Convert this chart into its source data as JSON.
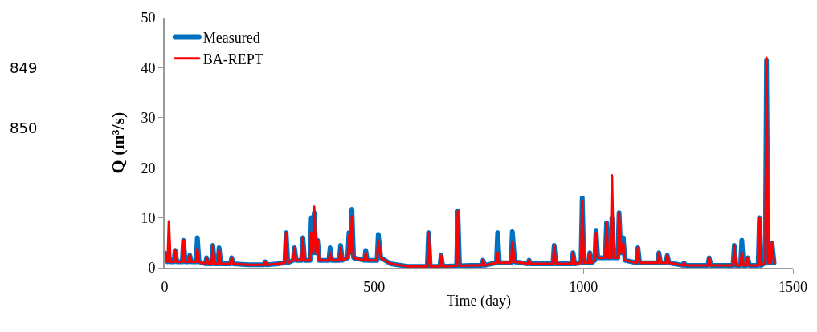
{
  "chart_data": {
    "type": "line",
    "xlabel": "Time (day)",
    "ylabel": "Q (m³/s)",
    "x": [
      0,
      7,
      10,
      14,
      22,
      25,
      29,
      42,
      45,
      49,
      57,
      60,
      64,
      75,
      78,
      82,
      97,
      100,
      104,
      112,
      115,
      119,
      127,
      130,
      134,
      157,
      160,
      164,
      200,
      237,
      240,
      244,
      270,
      287,
      290,
      294,
      307,
      310,
      314,
      327,
      330,
      334,
      347,
      350,
      354,
      357,
      361,
      365,
      369,
      392,
      395,
      399,
      417,
      420,
      424,
      437,
      440,
      444,
      447,
      451,
      477,
      480,
      484,
      507,
      510,
      516,
      540,
      580,
      627,
      630,
      634,
      657,
      660,
      664,
      697,
      700,
      704,
      730,
      757,
      760,
      764,
      792,
      795,
      799,
      827,
      830,
      836,
      867,
      870,
      874,
      927,
      930,
      934,
      972,
      975,
      979,
      994,
      997,
      1001,
      1012,
      1015,
      1019,
      1027,
      1030,
      1034,
      1052,
      1055,
      1059,
      1065,
      1068,
      1072,
      1082,
      1085,
      1089,
      1092,
      1095,
      1099,
      1127,
      1130,
      1134,
      1177,
      1180,
      1184,
      1197,
      1200,
      1204,
      1237,
      1240,
      1244,
      1297,
      1300,
      1304,
      1357,
      1360,
      1364,
      1375,
      1378,
      1382,
      1389,
      1392,
      1396,
      1417,
      1420,
      1424,
      1434,
      1437,
      1441,
      1447,
      1450,
      1455
    ],
    "series": [
      {
        "name": "Measured",
        "color": "#0070c0",
        "values": [
          3,
          1.2,
          2,
          1.2,
          1.2,
          3.5,
          1.2,
          1.2,
          5.5,
          1.2,
          1.2,
          2.5,
          1.2,
          1.2,
          6,
          1.2,
          0.8,
          2,
          0.8,
          0.8,
          4.5,
          0.8,
          0.8,
          4,
          0.8,
          0.8,
          2,
          0.8,
          0.6,
          0.6,
          1.2,
          0.6,
          0.8,
          1,
          7,
          1,
          1.5,
          4,
          1.5,
          1.5,
          6,
          1.5,
          1.5,
          10,
          3,
          11,
          3,
          5.5,
          1.5,
          1.5,
          4,
          1.5,
          1.5,
          4.5,
          1.5,
          2,
          7,
          3,
          11.7,
          2,
          1.5,
          3.5,
          1.5,
          1.5,
          6.7,
          2,
          0.8,
          0.3,
          0.3,
          7,
          0.3,
          0.3,
          2.5,
          0.3,
          0.4,
          11.3,
          0.4,
          0.5,
          0.5,
          1.5,
          0.5,
          1,
          7,
          1,
          1,
          7.2,
          1.2,
          0.8,
          1.5,
          0.8,
          0.8,
          4.5,
          0.8,
          0.8,
          3,
          0.8,
          1,
          14,
          1,
          1,
          3,
          1,
          1.5,
          7.5,
          2,
          2,
          9,
          2,
          2,
          10,
          2,
          2,
          11,
          3,
          3,
          6,
          1.5,
          1,
          4,
          1,
          1,
          3,
          1,
          1,
          2.5,
          1,
          0.5,
          1,
          0.5,
          0.5,
          2,
          0.5,
          0.5,
          4.5,
          0.5,
          0.5,
          5.5,
          0.5,
          0.5,
          2,
          0.5,
          0.5,
          10,
          0.5,
          1,
          41.5,
          1,
          1,
          5,
          1
        ]
      },
      {
        "name": "BA-REPT",
        "color": "#ff0000",
        "values": [
          3,
          1.2,
          9.3,
          1.2,
          1.2,
          3.5,
          1.2,
          1.2,
          5.5,
          1.2,
          1.2,
          2.5,
          1.2,
          1.2,
          3.8,
          1.2,
          0.8,
          2,
          0.8,
          0.8,
          4.5,
          0.8,
          0.8,
          3.5,
          0.8,
          0.8,
          2,
          0.8,
          0.6,
          0.6,
          1.2,
          0.6,
          0.8,
          1,
          7,
          1,
          1.5,
          4,
          1.5,
          1.5,
          6,
          1.5,
          1.5,
          7,
          3,
          12.2,
          3,
          5.5,
          1.5,
          1.5,
          3,
          1.5,
          1.5,
          4,
          1.5,
          2,
          6.5,
          3,
          10.3,
          2,
          1.5,
          3,
          1.5,
          1.5,
          5.5,
          2,
          0.8,
          0.3,
          0.3,
          7,
          0.3,
          0.3,
          2.5,
          0.3,
          0.4,
          11.3,
          0.4,
          0.5,
          0.5,
          1.5,
          0.5,
          1,
          3,
          1,
          1,
          5,
          1.2,
          0.8,
          1.5,
          0.8,
          0.8,
          4.5,
          0.8,
          0.8,
          3,
          0.8,
          1,
          13.5,
          1,
          1,
          3,
          1,
          1.5,
          7,
          2,
          2,
          9,
          2,
          2,
          18.5,
          2,
          2,
          11,
          3,
          3,
          5,
          1.5,
          1,
          4,
          1,
          1,
          3,
          1,
          1,
          2.5,
          1,
          0.5,
          1,
          0.5,
          0.5,
          2,
          0.5,
          0.5,
          4.5,
          0.5,
          0.5,
          3,
          0.5,
          0.5,
          2,
          0.5,
          0.5,
          10,
          0.5,
          1,
          42,
          1,
          1,
          5,
          1
        ]
      }
    ],
    "xlim": [
      0,
      1500
    ],
    "xticks": [
      0,
      500,
      1000,
      1500
    ],
    "ylim": [
      0,
      50
    ],
    "yticks": [
      0,
      10,
      20,
      30,
      40,
      50
    ],
    "legend": "top left",
    "marker": "none",
    "line_style": "solid",
    "annotations": [
      "849",
      "850"
    ]
  }
}
